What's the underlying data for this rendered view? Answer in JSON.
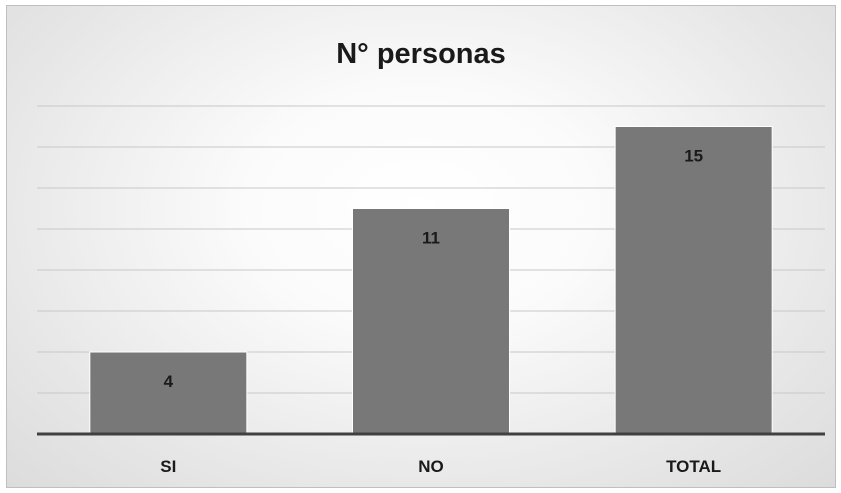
{
  "chart_data": {
    "type": "bar",
    "title": "N° personas",
    "categories": [
      "SI",
      "NO",
      "TOTAL"
    ],
    "values": [
      4,
      11,
      15
    ],
    "ylim": [
      0,
      16
    ],
    "gridline_step": 2,
    "grid": true,
    "legend": "none",
    "bar_color": "#787878",
    "axis_color": "#404040",
    "grid_color": "#c8c8c8"
  }
}
